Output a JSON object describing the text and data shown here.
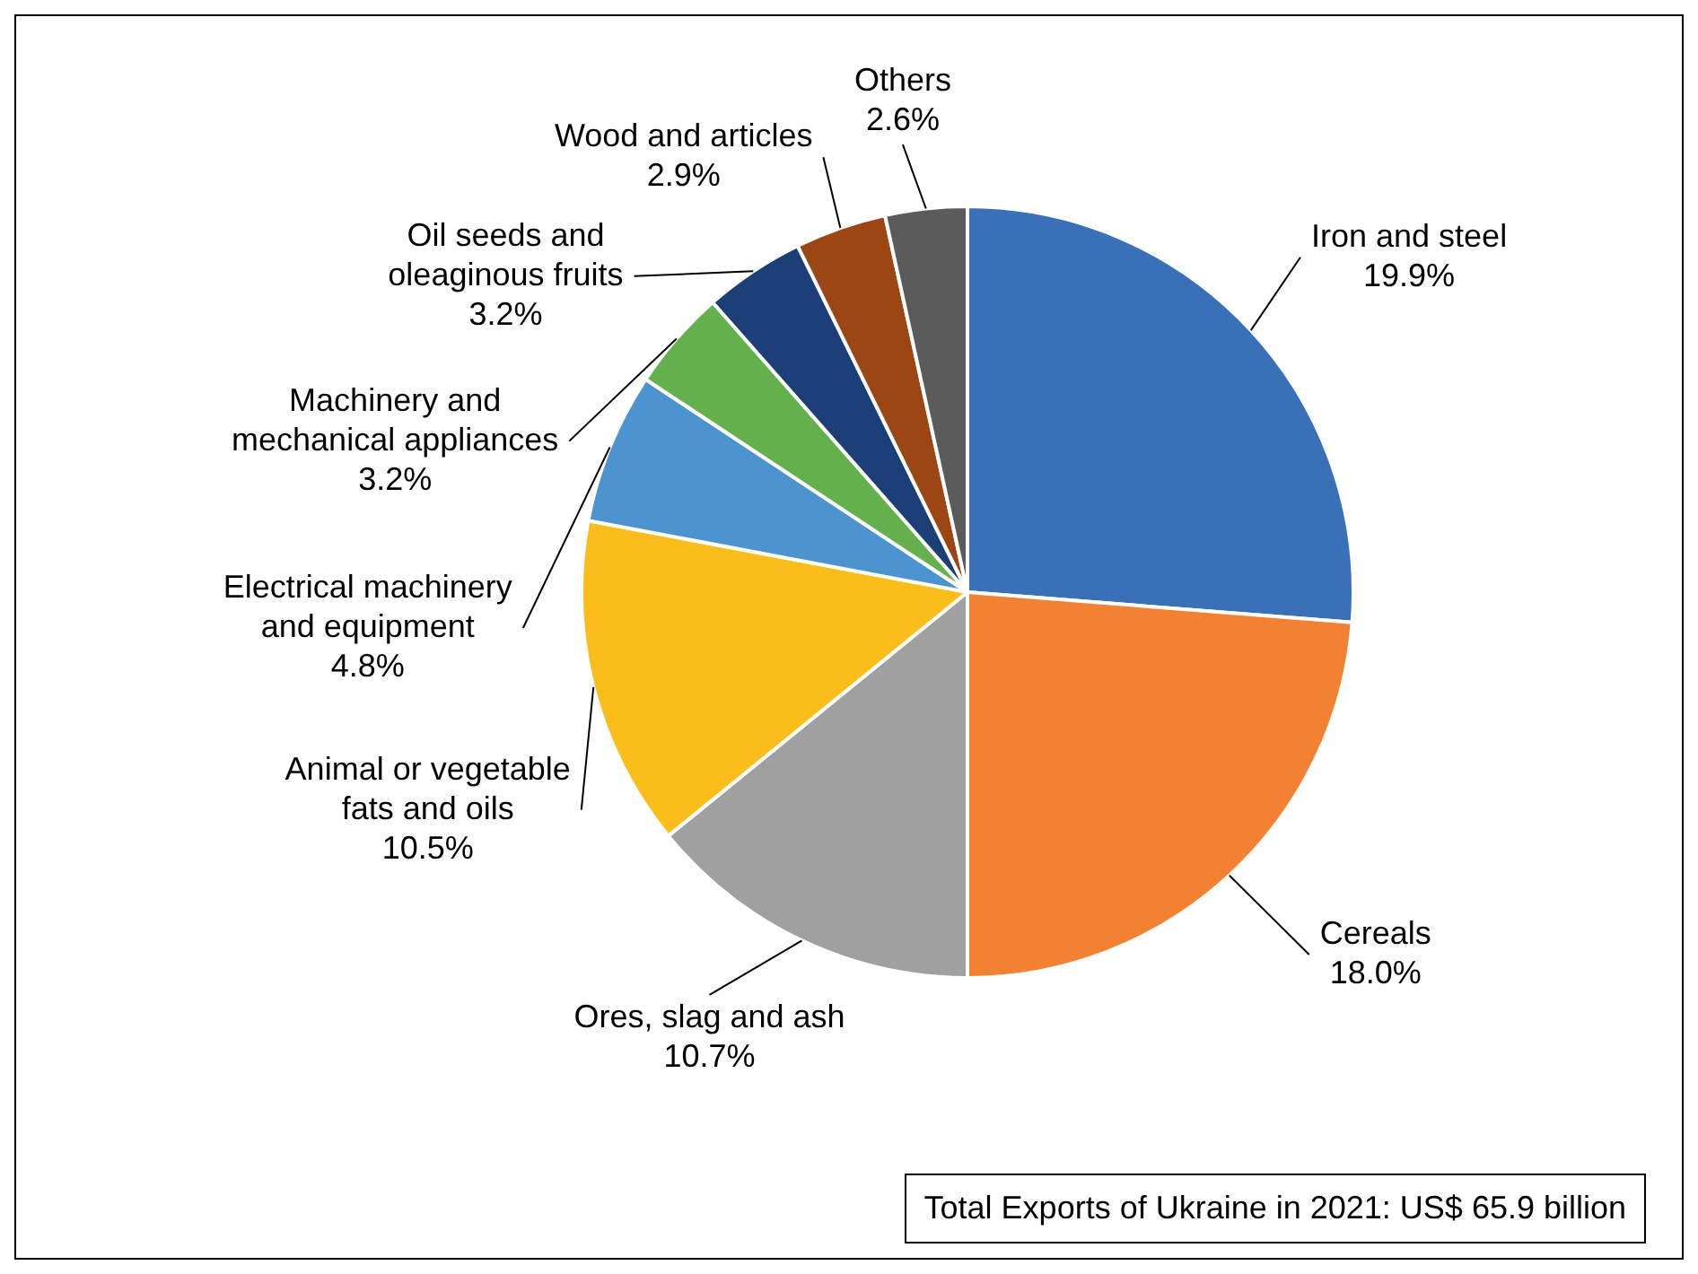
{
  "chart_data": {
    "type": "pie",
    "categories": [
      "Iron and steel",
      "Cereals",
      "Ores, slag and ash",
      "Animal or vegetable fats and oils",
      "Electrical machinery and equipment",
      "Machinery and mechanical appliances",
      "Oil seeds and oleaginous fruits",
      "Wood and articles",
      "Others"
    ],
    "values": [
      19.9,
      18.0,
      10.7,
      10.5,
      4.8,
      3.2,
      3.2,
      2.9,
      2.6
    ],
    "value_labels": [
      "19.9%",
      "18.0%",
      "10.7%",
      "10.5%",
      "4.8%",
      "3.2%",
      "3.2%",
      "2.9%",
      "2.6%"
    ],
    "colors": [
      "#3a70b8",
      "#f28132",
      "#a0a0a0",
      "#fbbd19",
      "#4b94d0",
      "#63b04d",
      "#1c3f78",
      "#9c4614",
      "#5b5b5b"
    ],
    "legend": false,
    "annotations": [
      "Total Exports of Ukraine in 2021: US$ 65.9 billion"
    ]
  }
}
